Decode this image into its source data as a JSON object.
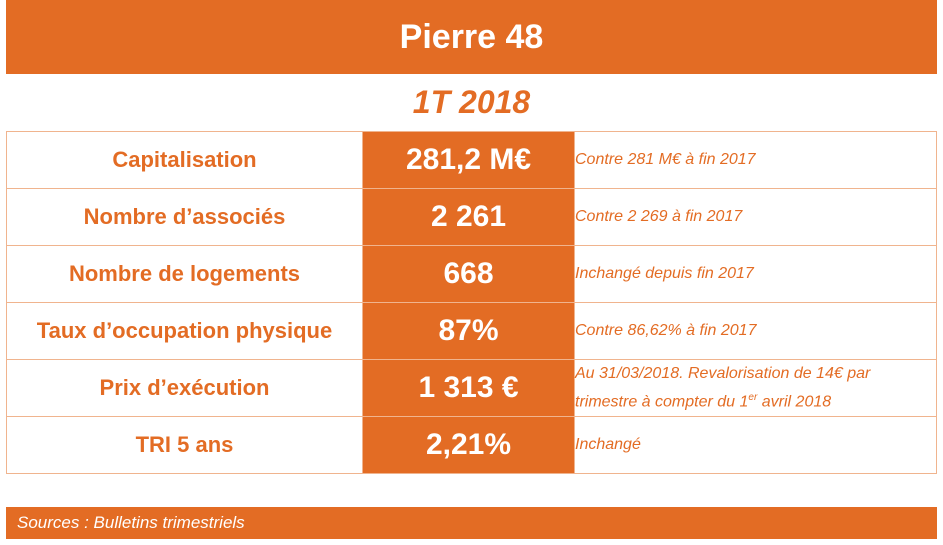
{
  "title": "Pierre 48",
  "period": "1T 2018",
  "rows": [
    {
      "label": "Capitalisation",
      "value": "281,2 M€",
      "note": "Contre 281 M€ à fin 2017"
    },
    {
      "label": "Nombre d’associés",
      "value": "2 261",
      "note": "Contre 2 269 à fin 2017"
    },
    {
      "label": "Nombre de logements",
      "value": "668",
      "note": "Inchangé depuis fin 2017"
    },
    {
      "label": "Taux d’occupation physique",
      "value": "87%",
      "note": "Contre 86,62% à fin 2017"
    },
    {
      "label": "Prix d’exécution",
      "value": "1 313 €",
      "note_part1": "Au 31/03/2018. Revalorisation de 14€ par trimestre à compter du 1",
      "note_sup": "er",
      "note_part2": " avril 2018"
    },
    {
      "label": "TRI 5 ans",
      "value": "2,21%",
      "note": "Inchangé"
    }
  ],
  "footer": "Sources : Bulletins trimestriels",
  "colors": {
    "accent": "#e36c24",
    "border": "#f0b48e",
    "text_on_accent": "#ffffff"
  }
}
